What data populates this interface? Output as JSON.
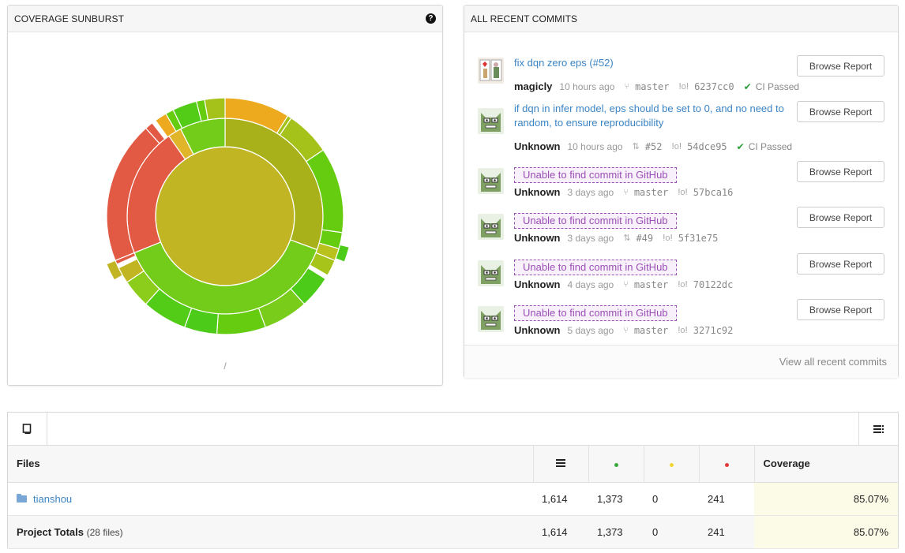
{
  "sunburst": {
    "title": "COVERAGE SUNBURST",
    "path_label": "/"
  },
  "commits": {
    "title": "ALL RECENT COMMITS",
    "browse_label": "Browse Report",
    "view_all_label": "View all recent commits",
    "ci_text": "CI Passed",
    "items": [
      {
        "message": "fix dqn zero eps (#52)",
        "author": "magicly",
        "time": "10 hours ago",
        "ref": "master",
        "ref_icon": "branch-icon",
        "sha": "6237cc0",
        "ci": "CI Passed",
        "unable": false
      },
      {
        "message": "if dqn in infer model, eps should be set to 0, and no need to random, to ensure reproducibility",
        "author": "Unknown",
        "time": "10 hours ago",
        "ref": "#52",
        "ref_icon": "pull-request-icon",
        "sha": "54dce95",
        "ci": "CI Passed",
        "unable": false
      },
      {
        "message": "Unable to find commit in GitHub",
        "author": "Unknown",
        "time": "3 days ago",
        "ref": "master",
        "ref_icon": "branch-icon",
        "sha": "57bca16",
        "ci": "",
        "unable": true
      },
      {
        "message": "Unable to find commit in GitHub",
        "author": "Unknown",
        "time": "3 days ago",
        "ref": "#49",
        "ref_icon": "pull-request-icon",
        "sha": "5f31e75",
        "ci": "",
        "unable": true
      },
      {
        "message": "Unable to find commit in GitHub",
        "author": "Unknown",
        "time": "4 days ago",
        "ref": "master",
        "ref_icon": "branch-icon",
        "sha": "70122dc",
        "ci": "",
        "unable": true
      },
      {
        "message": "Unable to find commit in GitHub",
        "author": "Unknown",
        "time": "5 days ago",
        "ref": "master",
        "ref_icon": "branch-icon",
        "sha": "3271c92",
        "ci": "",
        "unable": true
      }
    ]
  },
  "files": {
    "header": {
      "files": "Files",
      "coverage": "Coverage"
    },
    "status_colors": {
      "hit": "#3aa83a",
      "partial": "#f2d633",
      "miss": "#e33b3b"
    },
    "rows": [
      {
        "name": "tianshou",
        "lines": "1,614",
        "hits": "1,373",
        "partials": "0",
        "misses": "241",
        "coverage": "85.07%"
      }
    ],
    "totals": {
      "label": "Project Totals",
      "files_count": "(28 files)",
      "lines": "1,614",
      "hits": "1,373",
      "partials": "0",
      "misses": "241",
      "coverage": "85.07%"
    }
  },
  "colors": {
    "link": "#3b84c4",
    "unable": "#9a4fb5",
    "ci_pass": "#2a9d3a"
  }
}
